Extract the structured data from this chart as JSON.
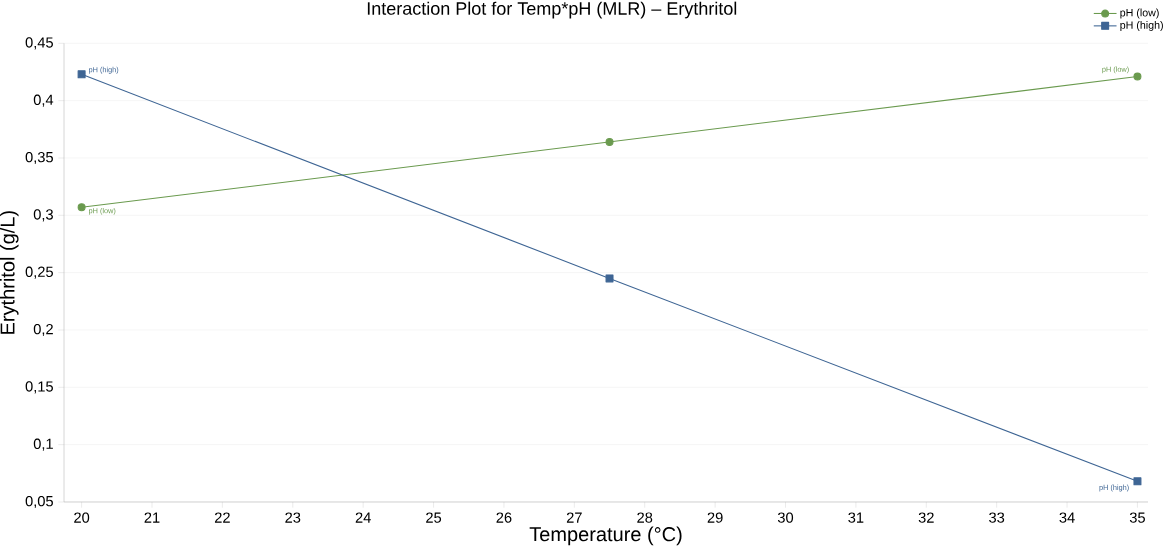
{
  "chart_data": {
    "type": "line",
    "title": "Interaction Plot for Temp*pH (MLR) – Erythritol",
    "xlabel": "Temperature (°C)",
    "ylabel": "Erythritol (g/L)",
    "x": [
      20,
      27.5,
      35
    ],
    "series": [
      {
        "name": "pH (low)",
        "color": "#6a9a4e",
        "marker": "circle",
        "values": [
          0.307,
          0.364,
          0.421
        ]
      },
      {
        "name": "pH (high)",
        "color": "#3e6594",
        "marker": "square",
        "values": [
          0.423,
          0.245,
          0.068
        ]
      }
    ],
    "xlim": [
      19.75,
      35.15
    ],
    "xticks": [
      20,
      21,
      22,
      23,
      24,
      25,
      26,
      27,
      28,
      29,
      30,
      31,
      32,
      33,
      34,
      35
    ],
    "ylim": [
      0.05,
      0.45
    ],
    "yticks": [
      {
        "value": 0.05,
        "label": "0,05"
      },
      {
        "value": 0.1,
        "label": "0,1"
      },
      {
        "value": 0.15,
        "label": "0,15"
      },
      {
        "value": 0.2,
        "label": "0,2"
      },
      {
        "value": 0.25,
        "label": "0,25"
      },
      {
        "value": 0.3,
        "label": "0,3"
      },
      {
        "value": 0.35,
        "label": "0,35"
      },
      {
        "value": 0.4,
        "label": "0,4"
      },
      {
        "value": 0.45,
        "label": "0,45"
      }
    ],
    "grid": "y",
    "legend": "top right",
    "line_style": "solid"
  }
}
